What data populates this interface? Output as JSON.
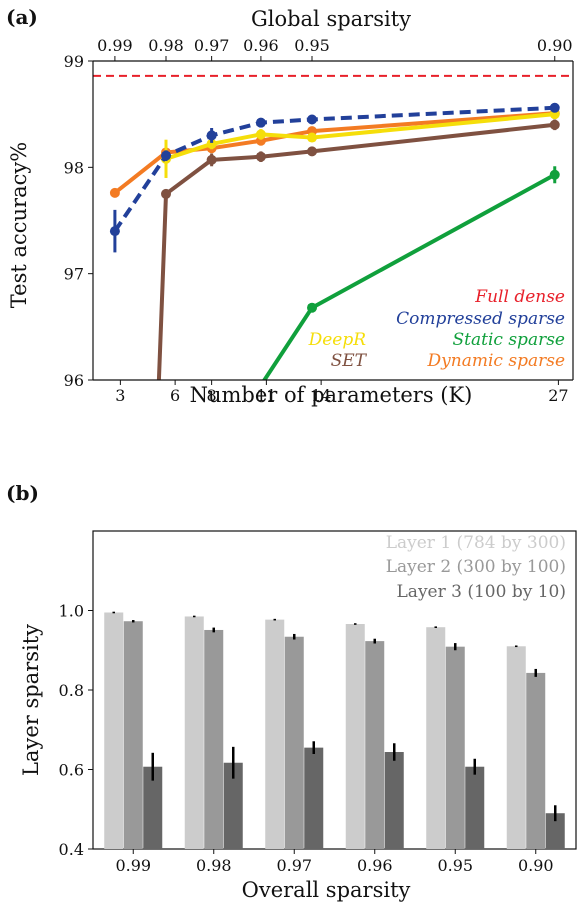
{
  "chart_data": [
    {
      "type": "line",
      "panel_label": "(a)",
      "xlabel": "Number of parameters (K)",
      "ylabel": "Test accuracy%",
      "top_xlabel": "Global sparsity",
      "xlim": [
        1.5,
        27.8
      ],
      "ylim": [
        96,
        99
      ],
      "x_ticks": [
        3,
        6,
        8,
        11,
        14,
        27
      ],
      "x_tick_labels": [
        "3",
        "6",
        "8",
        "11",
        "14",
        "27"
      ],
      "y_ticks": [
        96,
        97,
        98,
        99
      ],
      "y_tick_labels": [
        "96",
        "97",
        "98",
        "99"
      ],
      "top_ticks": [
        {
          "x": 2.7,
          "label": "0.99"
        },
        {
          "x": 5.5,
          "label": "0.98"
        },
        {
          "x": 8.0,
          "label": "0.97"
        },
        {
          "x": 10.7,
          "label": "0.96"
        },
        {
          "x": 13.5,
          "label": "0.95"
        },
        {
          "x": 26.8,
          "label": "0.90"
        }
      ],
      "reference_line": {
        "name": "Full dense",
        "y": 98.86,
        "color": "#e8202a"
      },
      "series": [
        {
          "name": "Compressed sparse",
          "color": "#22409a",
          "dashed": true,
          "x": [
            2.7,
            5.5,
            8.0,
            10.7,
            13.5,
            26.8
          ],
          "y": [
            97.4,
            98.11,
            98.3,
            98.42,
            98.45,
            98.56
          ],
          "err": [
            0.2,
            0.05,
            0.07,
            0.03,
            0.03,
            0.03
          ]
        },
        {
          "name": "DeepR",
          "color": "#f5de0a",
          "dashed": false,
          "x": [
            5.5,
            8.0,
            10.7,
            13.5,
            26.8
          ],
          "y": [
            98.08,
            98.22,
            98.31,
            98.28,
            98.5
          ],
          "err": [
            0.18,
            0.05,
            0.05,
            0.04,
            0.03
          ]
        },
        {
          "name": "Static sparse",
          "color": "#10a03c",
          "dashed": false,
          "x": [
            10.7,
            13.5,
            26.8
          ],
          "y": [
            95.95,
            96.68,
            97.93
          ],
          "err": [
            0,
            0,
            0.08
          ]
        },
        {
          "name": "SET",
          "color": "#7f5141",
          "dashed": false,
          "x": [
            5.1,
            5.5,
            8.0,
            10.7,
            13.5,
            26.8
          ],
          "y": [
            95.95,
            97.75,
            98.07,
            98.1,
            98.15,
            98.4
          ],
          "err": [
            0,
            0,
            0.06,
            0.05,
            0.03,
            0.05
          ]
        },
        {
          "name": "Dynamic sparse",
          "color": "#f37b23",
          "dashed": false,
          "x": [
            2.7,
            5.5,
            8.0,
            10.7,
            13.5,
            26.8
          ],
          "y": [
            97.76,
            98.14,
            98.18,
            98.25,
            98.34,
            98.51
          ],
          "err": [
            0,
            0.04,
            0.04,
            0.04,
            0.03,
            0.03
          ]
        }
      ]
    },
    {
      "type": "bar",
      "panel_label": "(b)",
      "xlabel": "Overall sparsity",
      "ylabel": "Layer sparsity",
      "ylim": [
        0.4,
        1.2
      ],
      "y_ticks": [
        0.4,
        0.6,
        0.8,
        1.0
      ],
      "y_tick_labels": [
        "0.4",
        "0.6",
        "0.8",
        "1.0"
      ],
      "categories": [
        "0.99",
        "0.98",
        "0.97",
        "0.96",
        "0.95",
        "0.90"
      ],
      "series": [
        {
          "name": "Layer 1 (784 by 300)",
          "color": "#cccccc",
          "values": [
            0.995,
            0.985,
            0.977,
            0.966,
            0.958,
            0.91
          ],
          "err": [
            0.002,
            0.002,
            0.002,
            0.002,
            0.002,
            0.002
          ]
        },
        {
          "name": "Layer 2 (300 by 100)",
          "color": "#999999",
          "values": [
            0.973,
            0.951,
            0.934,
            0.923,
            0.909,
            0.843
          ],
          "err": [
            0.003,
            0.006,
            0.007,
            0.006,
            0.009,
            0.01
          ]
        },
        {
          "name": "Layer 3 (100 by 10)",
          "color": "#666666",
          "values": [
            0.607,
            0.617,
            0.655,
            0.644,
            0.607,
            0.49
          ],
          "err": [
            0.035,
            0.04,
            0.016,
            0.022,
            0.02,
            0.02
          ]
        }
      ]
    }
  ]
}
